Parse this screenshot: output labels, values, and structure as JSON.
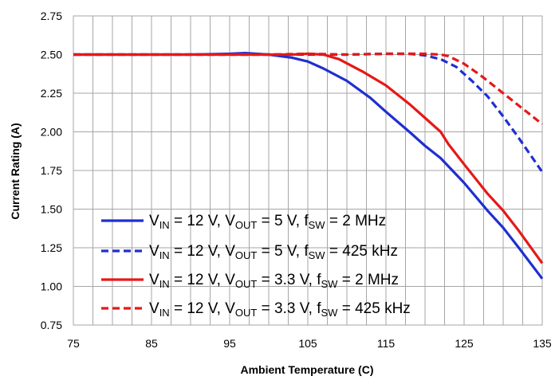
{
  "chart_data": {
    "type": "line",
    "xlabel": "Ambient Temperature (C)",
    "ylabel": "Current Rating (A)",
    "xlim": [
      75,
      135
    ],
    "ylim": [
      0.75,
      2.75
    ],
    "x_ticks": [
      "75",
      "85",
      "95",
      "105",
      "115",
      "125",
      "135"
    ],
    "y_ticks": [
      "0.75",
      "1.00",
      "1.25",
      "1.50",
      "1.75",
      "2.00",
      "2.25",
      "2.50",
      "2.75"
    ],
    "x_minor_step": 2.5,
    "grid": true,
    "legend_position": "bottom-left",
    "series": [
      {
        "legend": {
          "a": "V",
          "a_sub": "IN",
          "b": " = 12 V, V",
          "b_sub": "OUT",
          "c": " = 5 V, f",
          "c_sub": "SW",
          "d": " = 2 MHz"
        },
        "color": "#1f2fd0",
        "dashed": false,
        "x": [
          75,
          85,
          90,
          95,
          97,
          100,
          103,
          105,
          107,
          110,
          113,
          115,
          118,
          120,
          122,
          125,
          128,
          130,
          132,
          135
        ],
        "y": [
          2.5,
          2.5,
          2.5,
          2.505,
          2.51,
          2.5,
          2.48,
          2.455,
          2.41,
          2.33,
          2.22,
          2.13,
          2.0,
          1.91,
          1.83,
          1.67,
          1.49,
          1.38,
          1.25,
          1.05
        ]
      },
      {
        "legend": {
          "a": "V",
          "a_sub": "IN",
          "b": " = 12 V, V",
          "b_sub": "OUT",
          "c": " = 5 V, f",
          "c_sub": "SW",
          "d": " = 425 kHz"
        },
        "color": "#1f2fd0",
        "dashed": true,
        "x": [
          75,
          95,
          100,
          105,
          110,
          115,
          118,
          120,
          122,
          124,
          126,
          128,
          130,
          132,
          135
        ],
        "y": [
          2.5,
          2.5,
          2.5,
          2.5,
          2.5,
          2.505,
          2.505,
          2.495,
          2.47,
          2.42,
          2.33,
          2.23,
          2.1,
          1.96,
          1.74
        ]
      },
      {
        "legend": {
          "a": "V",
          "a_sub": "IN",
          "b": " = 12 V, V",
          "b_sub": "OUT",
          "c": " = 3.3 V, f",
          "c_sub": "SW",
          "d": " = 2 MHz"
        },
        "color": "#e61818",
        "dashed": false,
        "x": [
          75,
          85,
          95,
          100,
          103,
          105,
          107,
          109,
          112,
          115,
          118,
          120,
          122,
          123,
          125,
          128,
          130,
          132,
          135
        ],
        "y": [
          2.5,
          2.5,
          2.5,
          2.5,
          2.5,
          2.505,
          2.5,
          2.47,
          2.39,
          2.3,
          2.18,
          2.09,
          2.0,
          1.92,
          1.79,
          1.6,
          1.49,
          1.36,
          1.15
        ]
      },
      {
        "legend": {
          "a": "V",
          "a_sub": "IN",
          "b": " = 12 V, V",
          "b_sub": "OUT",
          "c": " = 3.3 V, f",
          "c_sub": "SW",
          "d": " = 425 kHz"
        },
        "color": "#e61818",
        "dashed": true,
        "x": [
          75,
          95,
          100,
          105,
          110,
          115,
          118,
          120,
          122,
          123,
          125,
          127,
          129,
          131,
          133,
          135
        ],
        "y": [
          2.5,
          2.5,
          2.5,
          2.505,
          2.5,
          2.505,
          2.505,
          2.505,
          2.5,
          2.49,
          2.44,
          2.37,
          2.29,
          2.21,
          2.13,
          2.05
        ]
      }
    ]
  }
}
